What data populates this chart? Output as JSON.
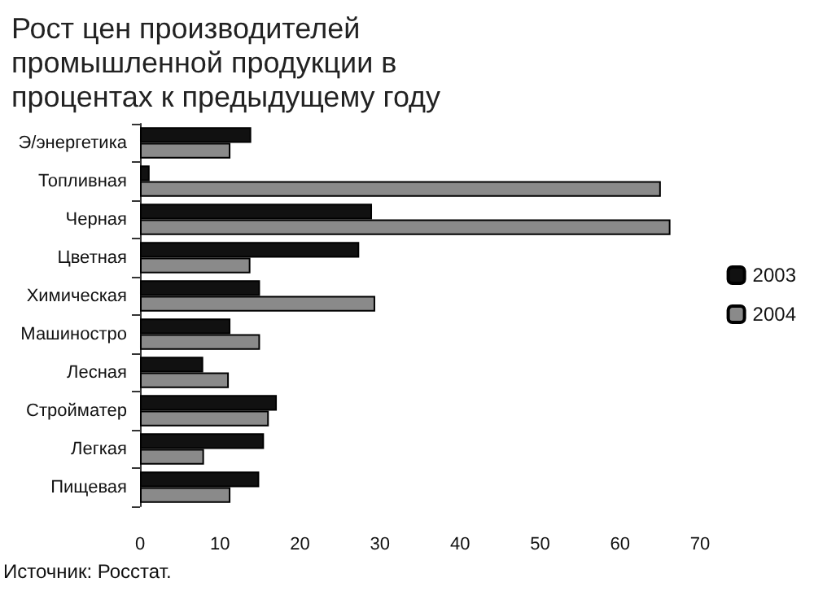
{
  "chart_data": {
    "type": "bar",
    "orientation": "horizontal",
    "title": "Рост цен производителей промышленной продукции в процентах к предыдущему году",
    "categories": [
      "Э/энергетика",
      "Топливная",
      "Черная",
      "Цветная",
      "Химическая",
      "Машиностро",
      "Лесная",
      "Стройматер",
      "Легкая",
      "Пищевая"
    ],
    "series": [
      {
        "name": "2003",
        "color": "#111111",
        "values": [
          13.9,
          1.2,
          29,
          27.4,
          15,
          11.3,
          7.9,
          17.1,
          15.5,
          14.9
        ]
      },
      {
        "name": "2004",
        "color": "#8a8a8a",
        "values": [
          11.3,
          65.1,
          66.3,
          13.8,
          29.4,
          15,
          11.1,
          16.1,
          8,
          11.3
        ]
      }
    ],
    "xlim": [
      0,
      70
    ],
    "xticks": [
      0,
      10,
      20,
      30,
      40,
      50,
      60,
      70
    ],
    "grid": false,
    "legend": "right",
    "annotations": [
      "Источник: Росстат."
    ]
  }
}
